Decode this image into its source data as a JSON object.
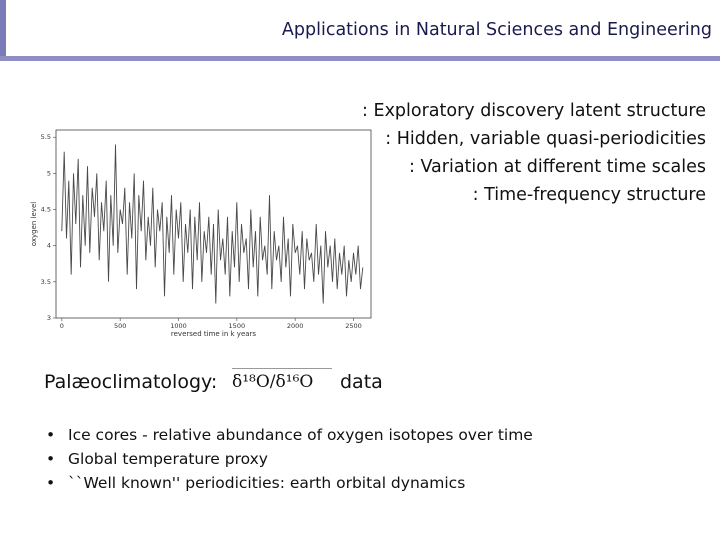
{
  "header": {
    "title": "Applications in Natural Sciences and Engineering"
  },
  "right_points": [
    ": Exploratory discovery latent structure",
    ": Hidden, variable quasi-periodicities",
    ": Variation at different time scales",
    ": Time-frequency structure"
  ],
  "section": {
    "heading": "Palæoclimatology:",
    "formula": "δ¹⁸O/δ¹⁶O",
    "suffix": "data"
  },
  "bullets": [
    "Ice cores -  relative abundance of oxygen isotopes over time",
    "Global temperature proxy",
    "``Well known'' periodicities: earth orbital dynamics"
  ],
  "chart_data": {
    "type": "line",
    "xlabel": "reversed time in k years",
    "ylabel": "oxygen level",
    "xlim": [
      -50,
      2650
    ],
    "ylim": [
      3,
      5.6
    ],
    "x_ticks": [
      "0",
      "500",
      "1000",
      "1500",
      "2000",
      "2500"
    ],
    "y_ticks": [
      "3",
      "3.5",
      "4",
      "4.5",
      "5",
      "5.5"
    ],
    "series": [
      {
        "x": [
          0,
          20,
          40,
          60,
          80,
          100,
          120,
          140,
          160,
          180,
          200,
          220,
          240,
          260,
          280,
          300,
          320,
          340,
          360,
          380,
          400,
          420,
          440,
          460,
          480,
          500,
          520,
          540,
          560,
          580,
          600,
          620,
          640,
          660,
          680,
          700,
          720,
          740,
          760,
          780,
          800,
          820,
          840,
          860,
          880,
          900,
          920,
          940,
          960,
          980,
          1000,
          1020,
          1040,
          1060,
          1080,
          1100,
          1120,
          1140,
          1160,
          1180,
          1200,
          1220,
          1240,
          1260,
          1280,
          1300,
          1320,
          1340,
          1360,
          1380,
          1400,
          1420,
          1440,
          1460,
          1480,
          1500,
          1520,
          1540,
          1560,
          1580,
          1600,
          1620,
          1640,
          1660,
          1680,
          1700,
          1720,
          1740,
          1760,
          1780,
          1800,
          1820,
          1840,
          1860,
          1880,
          1900,
          1920,
          1940,
          1960,
          1980,
          2000,
          2020,
          2040,
          2060,
          2080,
          2100,
          2120,
          2140,
          2160,
          2180,
          2200,
          2220,
          2240,
          2260,
          2280,
          2300,
          2320,
          2340,
          2360,
          2380,
          2400,
          2420,
          2440,
          2460,
          2480,
          2500,
          2520,
          2540,
          2560,
          2580
        ],
        "values": [
          4.2,
          5.3,
          4.1,
          4.9,
          3.6,
          5.0,
          4.3,
          5.2,
          3.7,
          4.7,
          4.0,
          5.1,
          3.9,
          4.8,
          4.4,
          5.0,
          3.8,
          4.6,
          4.2,
          4.9,
          3.5,
          4.7,
          4.0,
          5.4,
          3.9,
          4.5,
          4.3,
          4.8,
          3.6,
          4.6,
          4.1,
          5.0,
          3.4,
          4.7,
          4.2,
          4.9,
          3.8,
          4.4,
          4.0,
          4.8,
          3.7,
          4.5,
          4.2,
          4.6,
          3.3,
          4.4,
          3.9,
          4.7,
          3.6,
          4.5,
          4.1,
          4.6,
          3.5,
          4.3,
          3.9,
          4.5,
          3.4,
          4.4,
          3.8,
          4.6,
          3.5,
          4.2,
          3.9,
          4.4,
          3.6,
          4.3,
          3.2,
          4.5,
          3.8,
          4.1,
          3.6,
          4.4,
          3.3,
          4.2,
          3.7,
          4.6,
          3.5,
          4.3,
          3.9,
          4.1,
          3.4,
          4.5,
          3.7,
          4.2,
          3.3,
          4.4,
          3.8,
          4.0,
          3.6,
          4.7,
          3.4,
          4.2,
          3.8,
          4.0,
          3.5,
          4.4,
          3.7,
          4.1,
          3.3,
          4.3,
          3.9,
          4.0,
          3.6,
          4.2,
          3.4,
          4.1,
          3.8,
          3.9,
          3.5,
          4.3,
          3.6,
          4.0,
          3.2,
          4.2,
          3.7,
          4.0,
          3.5,
          4.1,
          3.4,
          3.9,
          3.6,
          4.0,
          3.3,
          3.8,
          3.5,
          3.9,
          3.6,
          4.0,
          3.4,
          3.7
        ]
      }
    ]
  }
}
